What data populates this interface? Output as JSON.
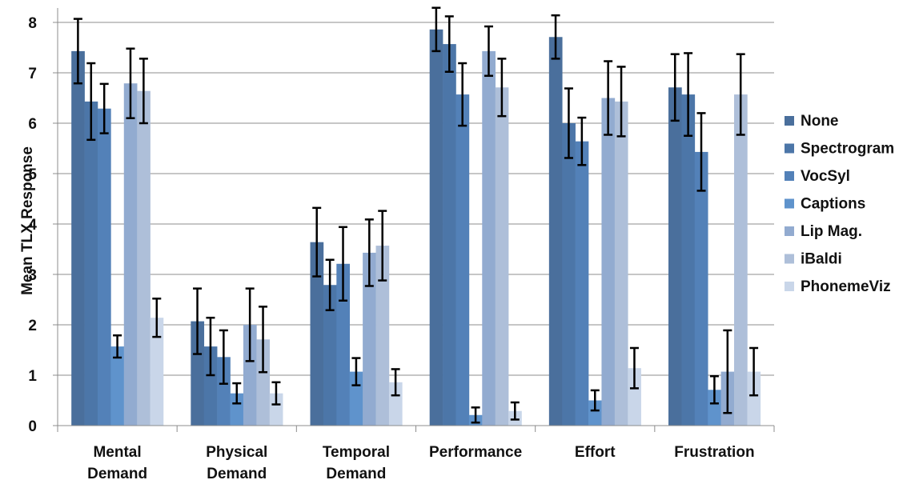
{
  "chart_data": {
    "type": "bar",
    "title": "",
    "xlabel": "",
    "ylabel": "Mean TLX Response",
    "ylim": [
      0,
      8
    ],
    "yticks": [
      0,
      1,
      2,
      3,
      4,
      5,
      6,
      7,
      8
    ],
    "grid": true,
    "legend_position": "right",
    "error_bars": true,
    "categories": [
      [
        "Mental",
        "Demand"
      ],
      [
        "Physical",
        "Demand"
      ],
      [
        "Temporal",
        "Demand"
      ],
      [
        "Performance"
      ],
      [
        "Effort"
      ],
      [
        "Frustration"
      ]
    ],
    "series": [
      {
        "name": "None",
        "color": "#4a6f9c",
        "values": [
          7.43,
          2.07,
          3.64,
          7.86,
          7.71,
          6.71
        ],
        "errors": [
          0.64,
          0.65,
          0.68,
          0.43,
          0.43,
          0.66
        ]
      },
      {
        "name": "Spectrogram",
        "color": "#4c76a8",
        "values": [
          6.43,
          1.57,
          2.79,
          7.57,
          6.0,
          6.57
        ],
        "errors": [
          0.76,
          0.57,
          0.5,
          0.55,
          0.69,
          0.82
        ]
      },
      {
        "name": "VocSyl",
        "color": "#5381b8",
        "values": [
          6.29,
          1.36,
          3.21,
          6.57,
          5.64,
          5.43
        ],
        "errors": [
          0.49,
          0.53,
          0.73,
          0.62,
          0.47,
          0.77
        ]
      },
      {
        "name": "Captions",
        "color": "#5f93cc",
        "values": [
          1.57,
          0.64,
          1.07,
          0.21,
          0.5,
          0.71
        ],
        "errors": [
          0.22,
          0.2,
          0.27,
          0.15,
          0.2,
          0.27
        ]
      },
      {
        "name": "Lip Mag.",
        "color": "#92abd0",
        "values": [
          6.79,
          2.0,
          3.43,
          7.43,
          6.5,
          1.07
        ],
        "errors": [
          0.69,
          0.72,
          0.66,
          0.49,
          0.73,
          0.82
        ]
      },
      {
        "name": "iBaldi",
        "color": "#aebfd9",
        "values": [
          6.64,
          1.71,
          3.57,
          6.71,
          6.43,
          6.57
        ],
        "errors": [
          0.64,
          0.65,
          0.69,
          0.57,
          0.69,
          0.8
        ]
      },
      {
        "name": "PhonemeViz",
        "color": "#c9d6e9",
        "values": [
          2.14,
          0.64,
          0.86,
          0.29,
          1.14,
          1.07
        ],
        "errors": [
          0.38,
          0.22,
          0.26,
          0.17,
          0.4,
          0.47
        ]
      }
    ]
  }
}
